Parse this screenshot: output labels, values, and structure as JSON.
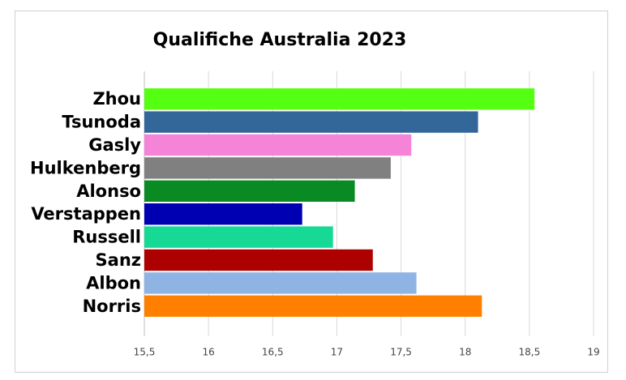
{
  "chart_data": {
    "type": "bar",
    "orientation": "horizontal",
    "title": "Qualifiche Australia 2023",
    "categories": [
      "Zhou",
      "Tsunoda",
      "Gasly",
      "Hulkenberg",
      "Alonso",
      "Verstappen",
      "Russell",
      "Sanz",
      "Albon",
      "Norris"
    ],
    "values": [
      18.54,
      18.1,
      17.58,
      17.42,
      17.14,
      16.73,
      16.97,
      17.28,
      17.62,
      18.13
    ],
    "colors": [
      "#55ff11",
      "#336699",
      "#f584d8",
      "#808080",
      "#0a8a22",
      "#0000b3",
      "#17d996",
      "#ad0000",
      "#8fb3e3",
      "#ff8000"
    ],
    "xlim": [
      15.5,
      19
    ],
    "xticks": [
      {
        "value": 15.5,
        "label": "15,5"
      },
      16,
      {
        "value": 16.5,
        "label": "16,5"
      },
      17,
      {
        "value": 17.5,
        "label": "17,5"
      },
      18,
      {
        "value": 18.5,
        "label": "18,5"
      },
      19
    ],
    "grid": true
  }
}
